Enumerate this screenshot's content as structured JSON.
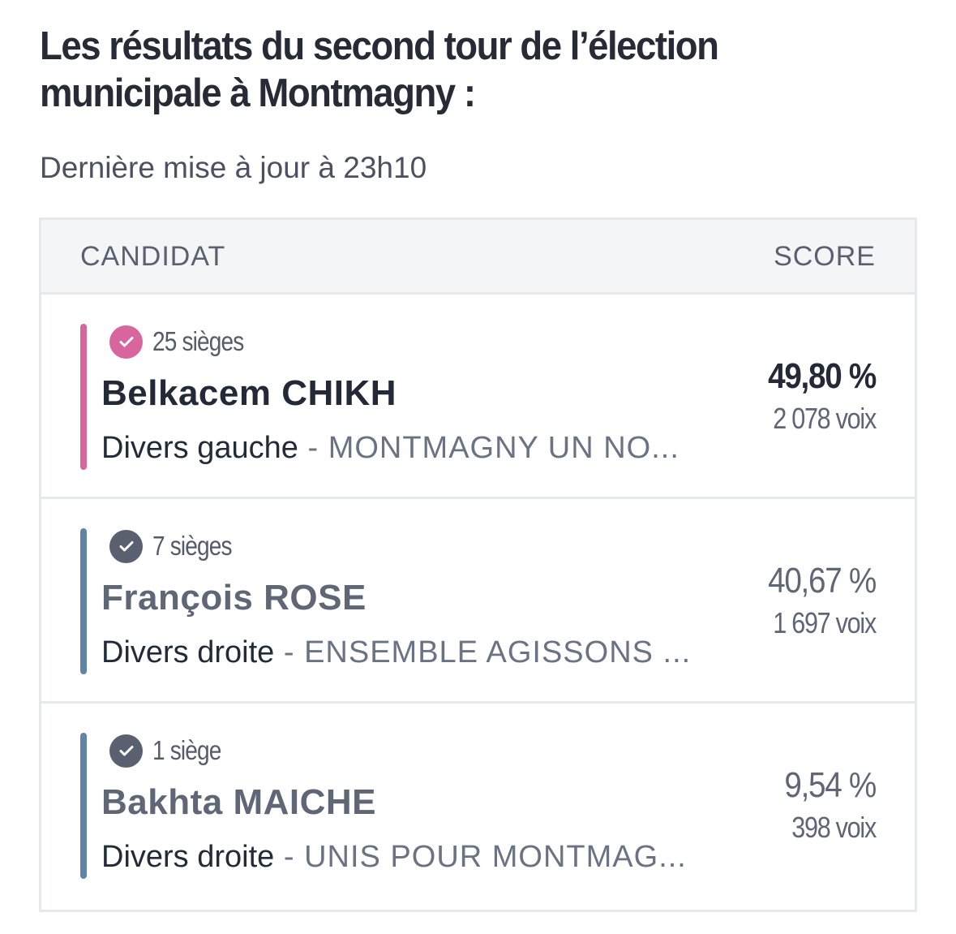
{
  "title": "Les résultats du second tour de l’élection municipale à Montmagny :",
  "updated": "Dernière mise à jour à 23h10",
  "table": {
    "header_candidate": "CANDIDAT",
    "header_score": "SCORE"
  },
  "candidates": [
    {
      "seats": "25 sièges",
      "name": "Belkacem CHIKH",
      "party": "Divers gauche",
      "separator": " - ",
      "list": "MONTMAGNY UN NO...",
      "percent": "49,80 %",
      "votes": "2 078 voix",
      "color": "#d9659f",
      "check_icon": "check-circle-icon"
    },
    {
      "seats": "7 sièges",
      "name": "François ROSE",
      "party": "Divers droite",
      "separator": " - ",
      "list": "ENSEMBLE AGISSONS ...",
      "percent": "40,67 %",
      "votes": "1 697 voix",
      "color": "#5f84a8",
      "check_icon": "check-circle-icon"
    },
    {
      "seats": "1 siège",
      "name": "Bakhta MAICHE",
      "party": "Divers droite",
      "separator": " - ",
      "list": "UNIS POUR MONTMAG...",
      "percent": "9,54 %",
      "votes": "398 voix",
      "color": "#5f84a8",
      "check_icon": "check-circle-icon"
    }
  ],
  "colors": {
    "check_winner": "#d9659f",
    "check_other": "#5a6070"
  }
}
